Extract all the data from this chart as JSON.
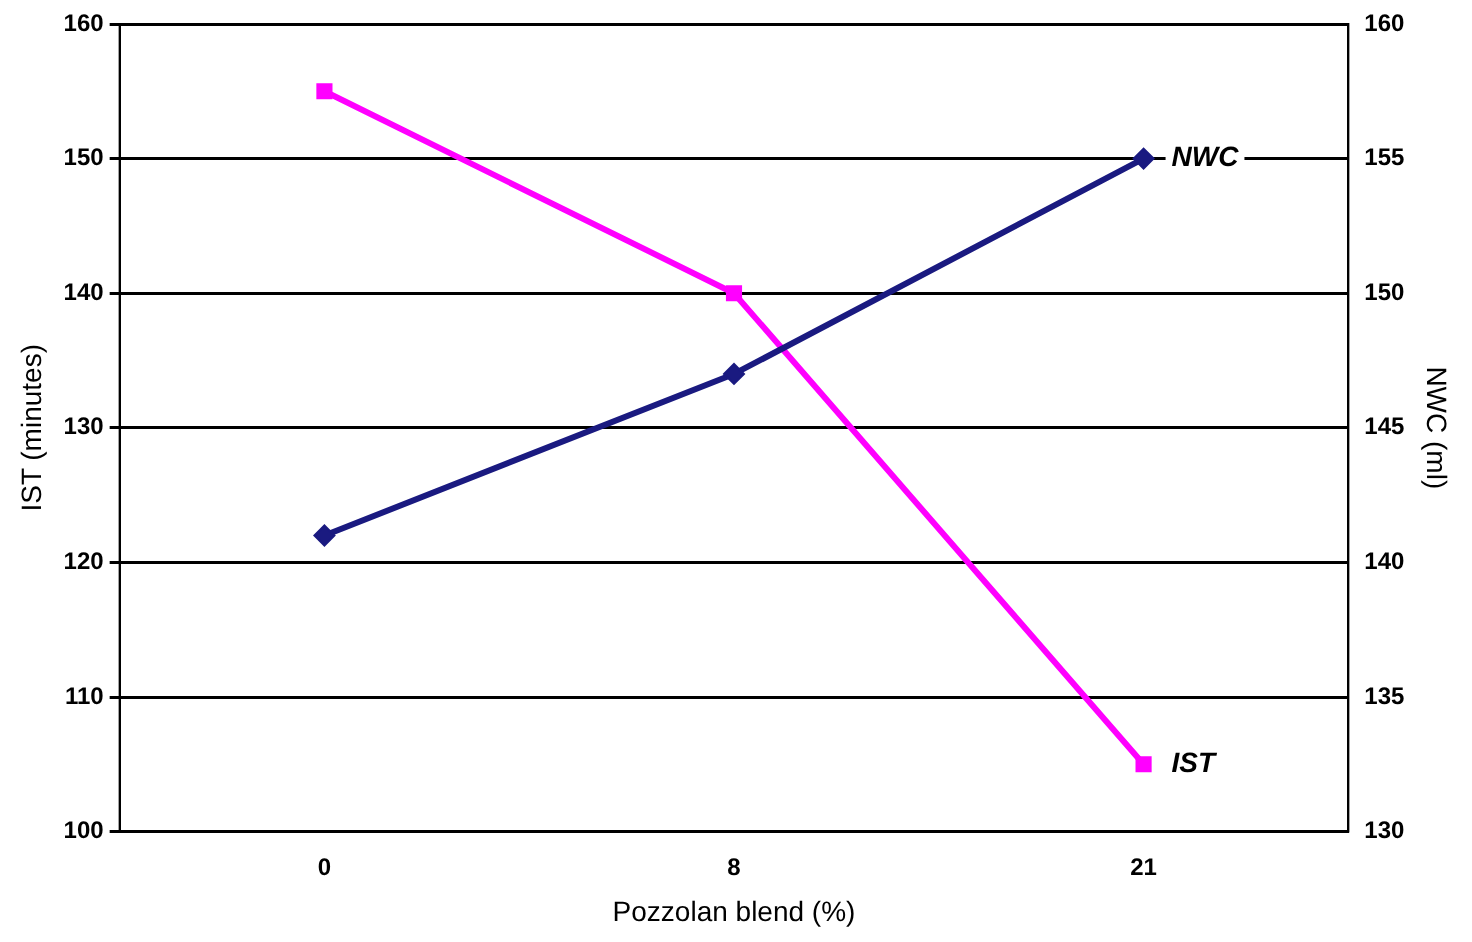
{
  "chart_data": {
    "type": "line",
    "xlabel": "Pozzolan blend (%)",
    "ylabel": "IST (minutes)",
    "y2label": "NWC (ml)",
    "categories": [
      "0",
      "8",
      "21"
    ],
    "series": [
      {
        "name": "NWC",
        "color": "#1a1a80",
        "values": [
          141,
          147,
          155
        ],
        "axis": "y2",
        "marker": "diamond"
      },
      {
        "name": "IST",
        "color": "#ff00ff",
        "values": [
          155,
          140,
          105
        ],
        "marker": "square"
      }
    ],
    "ylim": [
      100,
      160
    ],
    "yticks": [
      100,
      110,
      120,
      130,
      140,
      150,
      160
    ],
    "y2lim": [
      130,
      160
    ],
    "y2ticks": [
      130,
      135,
      140,
      145,
      150,
      155,
      160
    ],
    "grid": "y",
    "legend": false,
    "line_style": "solid"
  }
}
